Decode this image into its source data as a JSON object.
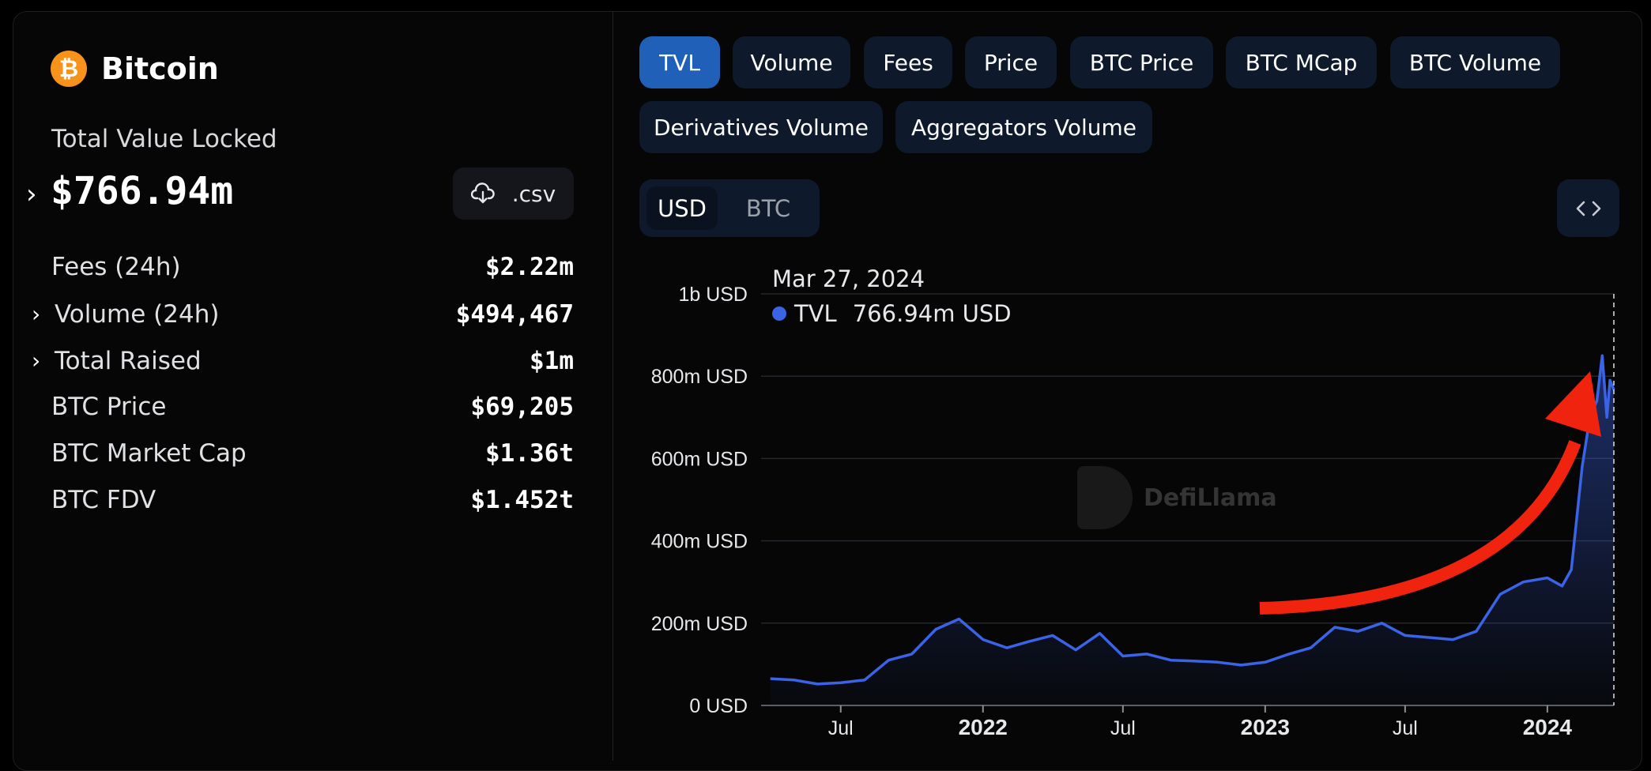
{
  "protocol": {
    "logo_symbol": "₿",
    "name": "Bitcoin",
    "tvl_label": "Total Value Locked",
    "tvl_value": "$766.94m",
    "csv_label": ".csv"
  },
  "stats": [
    {
      "label": "Fees (24h)",
      "value": "$2.22m",
      "expandable": false
    },
    {
      "label": "Volume (24h)",
      "value": "$494,467",
      "expandable": true
    },
    {
      "label": "Total Raised",
      "value": "$1m",
      "expandable": true
    },
    {
      "label": "BTC Price",
      "value": "$69,205",
      "expandable": false
    },
    {
      "label": "BTC Market Cap",
      "value": "$1.36t",
      "expandable": false
    },
    {
      "label": "BTC FDV",
      "value": "$1.452t",
      "expandable": false
    }
  ],
  "tabs": [
    {
      "label": "TVL",
      "active": true
    },
    {
      "label": "Volume",
      "active": false
    },
    {
      "label": "Fees",
      "active": false
    },
    {
      "label": "Price",
      "active": false
    },
    {
      "label": "BTC Price",
      "active": false
    },
    {
      "label": "BTC MCap",
      "active": false
    },
    {
      "label": "BTC Volume",
      "active": false
    },
    {
      "label": "Derivatives Volume",
      "active": false
    },
    {
      "label": "Aggregators Volume",
      "active": false
    }
  ],
  "currency_toggle": {
    "usd": "USD",
    "btc": "BTC",
    "selected": "USD"
  },
  "embed_icon": "code-brackets-icon",
  "tooltip": {
    "date": "Mar 27, 2024",
    "series": "TVL",
    "value": "766.94m USD"
  },
  "watermark": "DefiLlama",
  "colors": {
    "accent": "#2060b8",
    "line": "#3b63e6",
    "arrow": "#f0230e",
    "btc": "#f7931a"
  },
  "chart_data": {
    "type": "area",
    "series": [
      {
        "name": "TVL",
        "x": [
          "2021-04-01",
          "2021-05-01",
          "2021-06-01",
          "2021-07-01",
          "2021-08-01",
          "2021-09-01",
          "2021-10-01",
          "2021-11-01",
          "2021-12-01",
          "2022-01-01",
          "2022-02-01",
          "2022-03-01",
          "2022-04-01",
          "2022-05-01",
          "2022-06-01",
          "2022-07-01",
          "2022-08-01",
          "2022-09-01",
          "2022-10-01",
          "2022-11-01",
          "2022-12-01",
          "2023-01-01",
          "2023-02-01",
          "2023-03-01",
          "2023-04-01",
          "2023-05-01",
          "2023-06-01",
          "2023-07-01",
          "2023-08-01",
          "2023-09-01",
          "2023-10-01",
          "2023-11-01",
          "2023-12-01",
          "2024-01-01",
          "2024-01-20",
          "2024-02-01",
          "2024-02-15",
          "2024-02-25",
          "2024-03-05",
          "2024-03-12",
          "2024-03-18",
          "2024-03-22",
          "2024-03-27"
        ],
        "values": [
          65,
          62,
          52,
          55,
          62,
          110,
          125,
          185,
          210,
          160,
          140,
          155,
          170,
          135,
          175,
          120,
          125,
          110,
          108,
          105,
          98,
          105,
          125,
          140,
          190,
          180,
          200,
          170,
          165,
          160,
          180,
          270,
          300,
          310,
          290,
          330,
          580,
          700,
          740,
          850,
          700,
          790,
          767
        ]
      }
    ],
    "y_unit": "USD",
    "yticks": [
      "0 USD",
      "200m USD",
      "400m USD",
      "600m USD",
      "800m USD",
      "1b USD"
    ],
    "ylim": [
      0,
      1000
    ],
    "xticks": [
      {
        "label": "Jul",
        "date": "2021-07-01",
        "major": false
      },
      {
        "label": "2022",
        "date": "2022-01-01",
        "major": true
      },
      {
        "label": "Jul",
        "date": "2022-07-01",
        "major": false
      },
      {
        "label": "2023",
        "date": "2023-01-01",
        "major": true
      },
      {
        "label": "Jul",
        "date": "2023-07-01",
        "major": false
      },
      {
        "label": "2024",
        "date": "2024-01-01",
        "major": true
      }
    ],
    "grid": true,
    "annotation": "red upward arrow"
  }
}
